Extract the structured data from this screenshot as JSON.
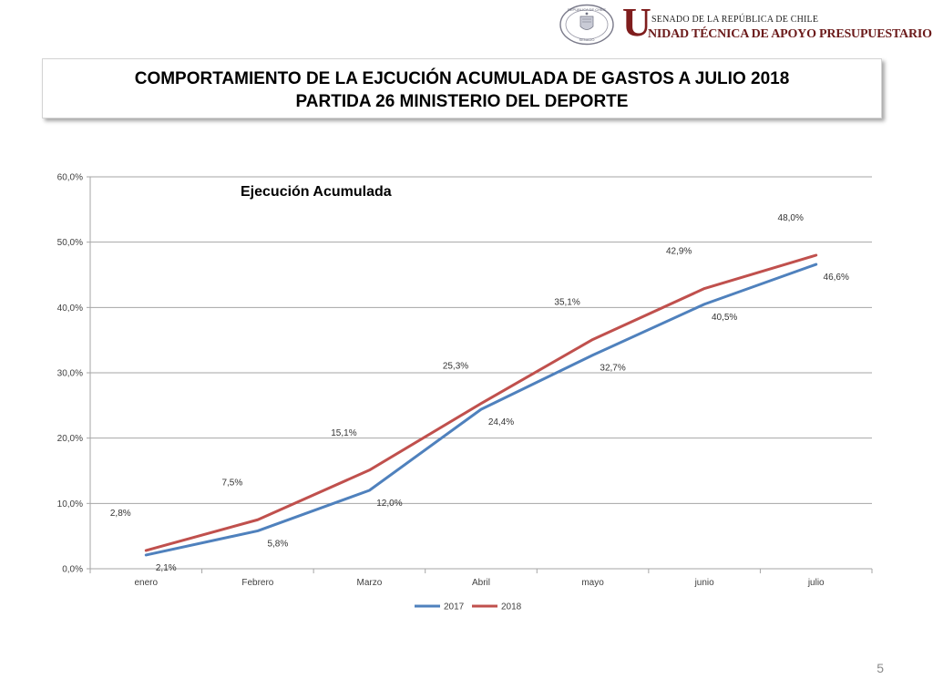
{
  "header": {
    "seal_text_top": "REPÚBLICA DE CHILE",
    "seal_text_bottom": "SENADO",
    "org_initial": "U",
    "org_line1": "SENADO DE LA REPÚBLICA DE CHILE",
    "org_line2": "NIDAD TÉCNICA DE APOYO PRESUPUESTARIO"
  },
  "title": {
    "line1": "COMPORTAMIENTO DE LA EJCUCIÓN ACUMULADA DE GASTOS A JULIO 2018",
    "line2": "PARTIDA 26 MINISTERIO DEL DEPORTE"
  },
  "colors": {
    "series_2017": "#4f81bd",
    "series_2018": "#c0504d",
    "grid": "#a6a6a6",
    "axis": "#a6a6a6"
  },
  "chart_data": {
    "type": "line",
    "title": "Ejecución Acumulada",
    "xlabel": "",
    "ylabel": "",
    "ylim": [
      0,
      60
    ],
    "ytick_values": [
      0,
      10,
      20,
      30,
      40,
      50,
      60
    ],
    "ytick_labels": [
      "0,0%",
      "10,0%",
      "20,0%",
      "30,0%",
      "40,0%",
      "50,0%",
      "60,0%"
    ],
    "grid": true,
    "legend_position": "bottom",
    "categories": [
      "enero",
      "Febrero",
      "Marzo",
      "Abril",
      "mayo",
      "junio",
      "julio"
    ],
    "series": [
      {
        "name": "2017",
        "values": [
          2.1,
          5.8,
          12.0,
          24.4,
          32.7,
          40.5,
          46.6
        ],
        "labels": [
          "2,1%",
          "5,8%",
          "12,0%",
          "24,4%",
          "32,7%",
          "40,5%",
          "46,6%"
        ]
      },
      {
        "name": "2018",
        "values": [
          2.8,
          7.5,
          15.1,
          25.3,
          35.1,
          42.9,
          48.0
        ],
        "labels": [
          "2,8%",
          "7,5%",
          "15,1%",
          "25,3%",
          "35,1%",
          "42,9%",
          "48,0%"
        ]
      }
    ]
  },
  "footer": {
    "slide_number": "5"
  }
}
